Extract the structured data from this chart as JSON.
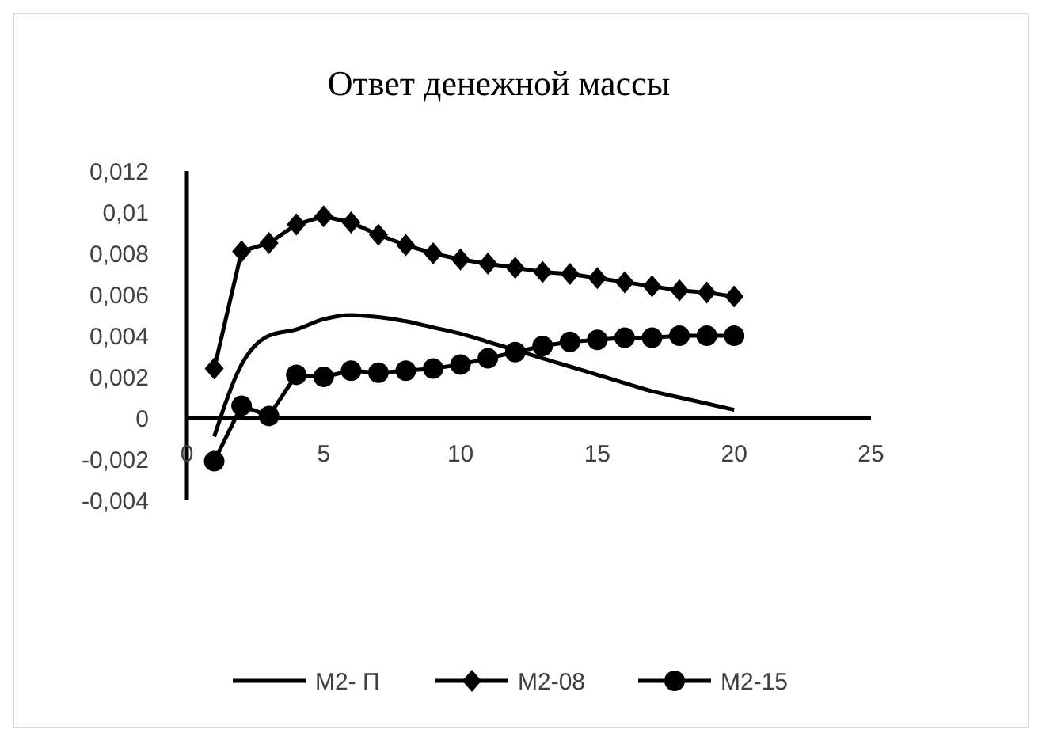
{
  "chart_data": {
    "type": "line",
    "title": "Ответ денежной массы",
    "x": [
      1,
      2,
      3,
      4,
      5,
      6,
      7,
      8,
      9,
      10,
      11,
      12,
      13,
      14,
      15,
      16,
      17,
      18,
      19,
      20
    ],
    "series": [
      {
        "name": "M2- П",
        "color": "#000000",
        "marker": "none",
        "values": [
          -0.0009,
          0.0026,
          0.004,
          0.0043,
          0.0048,
          0.005,
          0.0049,
          0.0047,
          0.0044,
          0.0041,
          0.0037,
          0.0033,
          0.0029,
          0.0025,
          0.0021,
          0.0017,
          0.0013,
          0.001,
          0.0007,
          0.0004
        ]
      },
      {
        "name": "M2-08",
        "color": "#000000",
        "marker": "diamond",
        "values": [
          0.0024,
          0.0081,
          0.0085,
          0.0094,
          0.0098,
          0.0095,
          0.0089,
          0.0084,
          0.008,
          0.0077,
          0.0075,
          0.0073,
          0.0071,
          0.007,
          0.0068,
          0.0066,
          0.0064,
          0.0062,
          0.0061,
          0.0059
        ]
      },
      {
        "name": "M2-15",
        "color": "#000000",
        "marker": "circle",
        "values": [
          -0.0021,
          0.0006,
          0.0001,
          0.0021,
          0.002,
          0.0023,
          0.0022,
          0.0023,
          0.0024,
          0.0026,
          0.0029,
          0.0032,
          0.0035,
          0.0037,
          0.0038,
          0.0039,
          0.0039,
          0.004,
          0.004,
          0.004
        ]
      }
    ],
    "xlim": [
      0,
      25
    ],
    "xticks": [
      0,
      5,
      10,
      15,
      20,
      25
    ],
    "ylim": [
      -0.004,
      0.012
    ],
    "yticks": [
      {
        "value": -0.004,
        "label": "-0,004"
      },
      {
        "value": -0.002,
        "label": "-0,002"
      },
      {
        "value": 0,
        "label": "0"
      },
      {
        "value": 0.002,
        "label": "0,002"
      },
      {
        "value": 0.004,
        "label": "0,004"
      },
      {
        "value": 0.006,
        "label": "0,006"
      },
      {
        "value": 0.008,
        "label": "0,008"
      },
      {
        "value": 0.01,
        "label": "0,01"
      },
      {
        "value": 0.012,
        "label": "0,012"
      }
    ],
    "grid": false,
    "legend": "bottom"
  }
}
